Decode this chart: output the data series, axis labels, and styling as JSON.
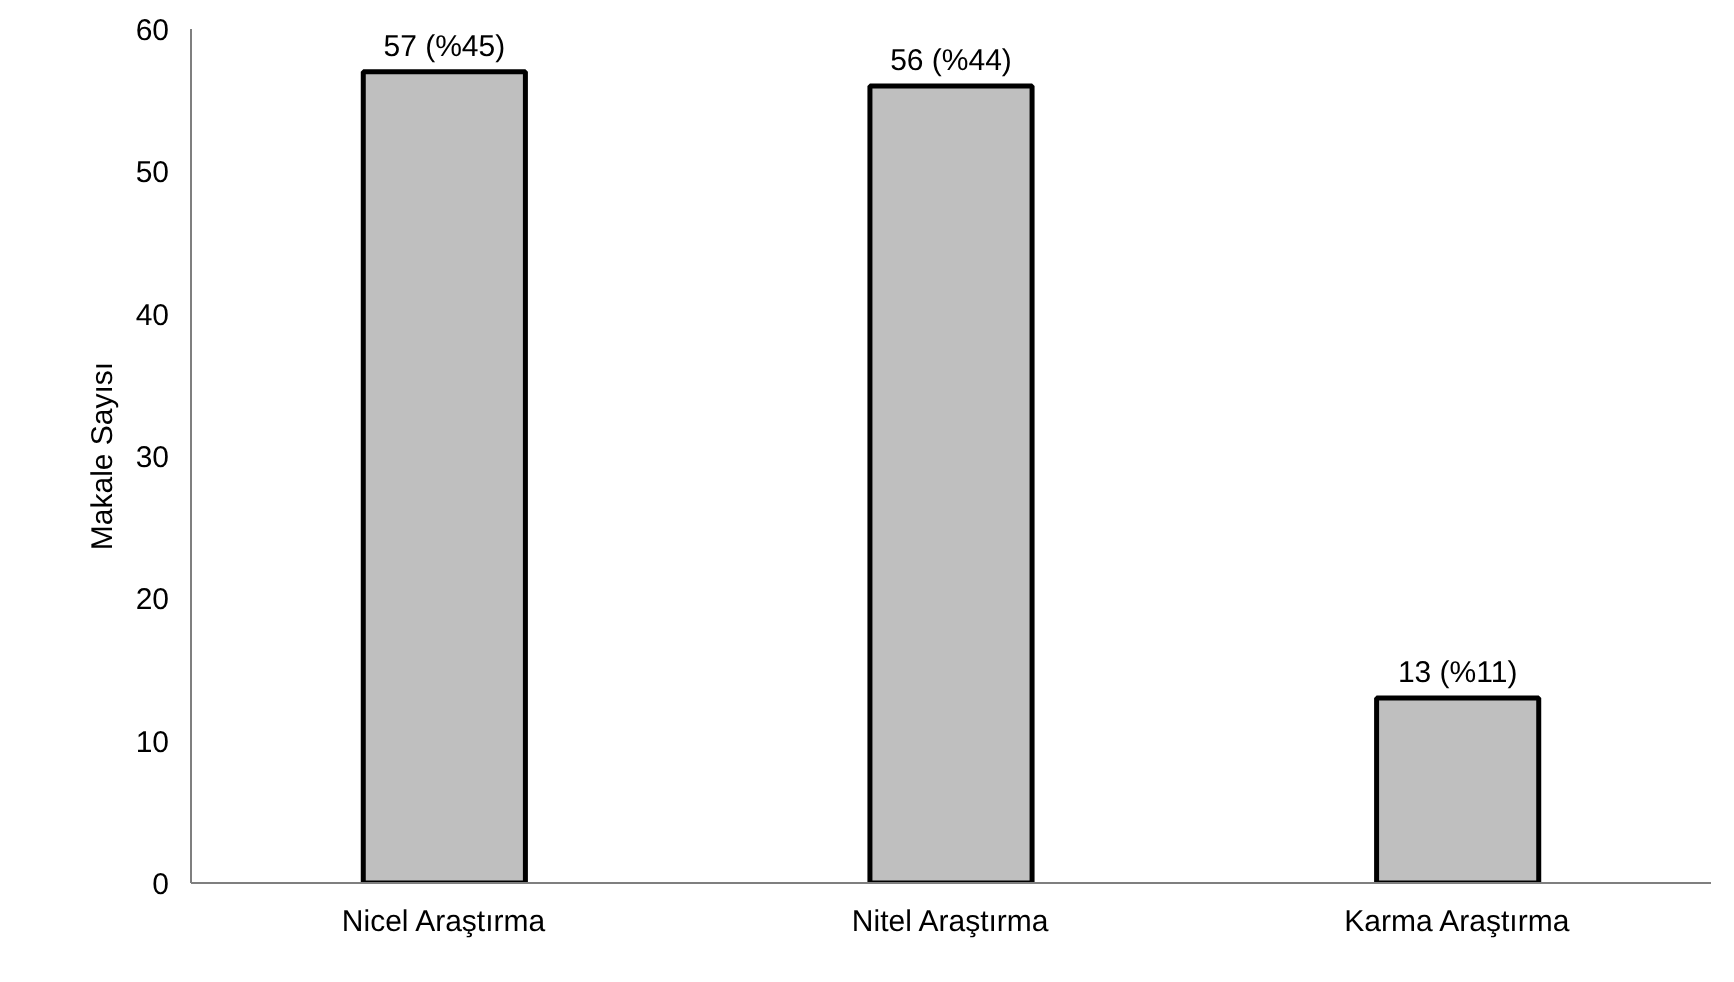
{
  "chart_data": {
    "type": "bar",
    "ylabel": "Makale Sayısı",
    "categories": [
      "Nicel Araştırma",
      "Nitel Araştırma",
      "Karma Araştırma"
    ],
    "values": [
      57,
      56,
      13
    ],
    "value_labels": [
      "57 (%45)",
      "56 (%44)",
      "13 (%11)"
    ],
    "color": "#bfbfbf",
    "ylim": [
      0,
      60
    ],
    "yticks": [
      0,
      10,
      20,
      30,
      40,
      50,
      60
    ],
    "grid": false
  }
}
